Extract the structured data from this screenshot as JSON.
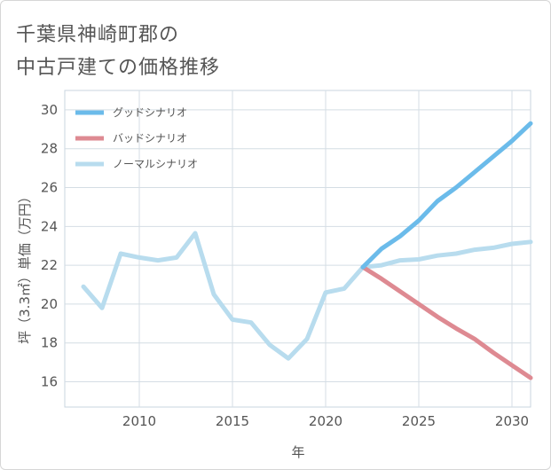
{
  "page": {
    "title_line1": "千葉県神崎町郡の",
    "title_line2": "中古戸建ての価格推移"
  },
  "chart_data": {
    "type": "line",
    "title": "千葉県神崎町郡の中古戸建ての価格推移",
    "xlabel": "年",
    "ylabel": "坪（3.3㎡）単価（万円）",
    "xlim": [
      2006,
      2031
    ],
    "ylim": [
      14.7,
      31
    ],
    "xticks": [
      2010,
      2015,
      2020,
      2025,
      2030
    ],
    "yticks": [
      16,
      18,
      20,
      22,
      24,
      26,
      28,
      30
    ],
    "legend_position": "top-left",
    "series": [
      {
        "name": "グッドシナリオ",
        "color": "#6bbbea",
        "x": [
          2022,
          2023,
          2024,
          2025,
          2026,
          2027,
          2028,
          2029,
          2030,
          2031
        ],
        "y": [
          21.9,
          22.85,
          23.5,
          24.3,
          25.3,
          26.0,
          26.8,
          27.6,
          28.4,
          29.3
        ]
      },
      {
        "name": "バッドシナリオ",
        "color": "#de8a92",
        "x": [
          2022,
          2023,
          2024,
          2025,
          2026,
          2027,
          2028,
          2029,
          2030,
          2031
        ],
        "y": [
          21.9,
          21.3,
          20.65,
          20.0,
          19.35,
          18.75,
          18.2,
          17.5,
          16.85,
          16.2
        ]
      },
      {
        "name": "ノーマルシナリオ",
        "color": "#b8dcee",
        "x": [
          2007,
          2008,
          2009,
          2010,
          2011,
          2012,
          2013,
          2014,
          2015,
          2016,
          2017,
          2018,
          2019,
          2020,
          2021,
          2022,
          2023,
          2024,
          2025,
          2026,
          2027,
          2028,
          2029,
          2030,
          2031
        ],
        "y": [
          20.9,
          19.8,
          22.6,
          22.4,
          22.25,
          22.4,
          23.65,
          20.5,
          19.2,
          19.05,
          17.9,
          17.2,
          18.2,
          20.6,
          20.8,
          21.9,
          22.0,
          22.25,
          22.3,
          22.5,
          22.6,
          22.8,
          22.9,
          23.1,
          23.2
        ]
      }
    ]
  }
}
